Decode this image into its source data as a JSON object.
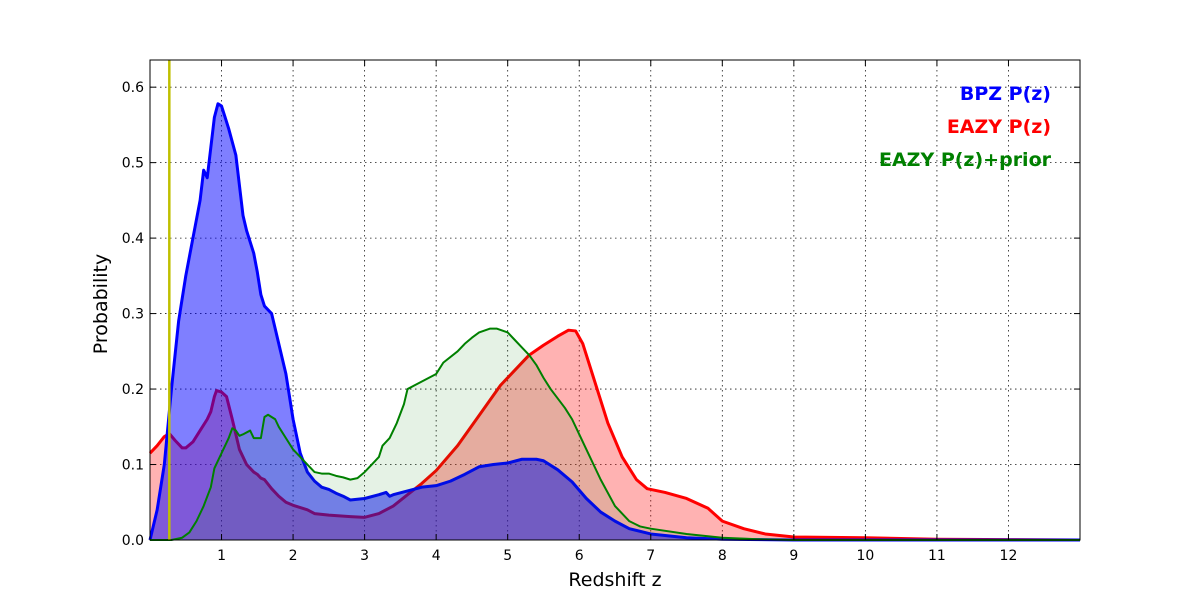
{
  "chart_data": {
    "type": "area",
    "title": "",
    "xlabel": "Redshift z",
    "ylabel": "Probability",
    "xlim": [
      0,
      13
    ],
    "ylim": [
      0,
      0.636
    ],
    "x_ticks": [
      1,
      2,
      3,
      4,
      5,
      6,
      7,
      8,
      9,
      10,
      11,
      12
    ],
    "y_ticks": [
      0.0,
      0.1,
      0.2,
      0.3,
      0.4,
      0.5,
      0.6
    ],
    "grid": true,
    "legend_placement": "top-right",
    "reference_line": {
      "x": 0.27,
      "color": "#bfbf00"
    },
    "series": [
      {
        "name": "EAZY P(z)",
        "color": "#ff0000",
        "fill": "#ff0000",
        "fill_opacity": 0.3,
        "line_width": 3,
        "points": [
          [
            0,
            0.115
          ],
          [
            0.1,
            0.125
          ],
          [
            0.2,
            0.137
          ],
          [
            0.27,
            0.141
          ],
          [
            0.35,
            0.132
          ],
          [
            0.45,
            0.122
          ],
          [
            0.5,
            0.122
          ],
          [
            0.6,
            0.13
          ],
          [
            0.7,
            0.145
          ],
          [
            0.8,
            0.16
          ],
          [
            0.85,
            0.17
          ],
          [
            0.9,
            0.19
          ],
          [
            0.93,
            0.198
          ],
          [
            1.0,
            0.196
          ],
          [
            1.07,
            0.19
          ],
          [
            1.15,
            0.16
          ],
          [
            1.25,
            0.12
          ],
          [
            1.35,
            0.1
          ],
          [
            1.45,
            0.09
          ],
          [
            1.5,
            0.087
          ],
          [
            1.55,
            0.082
          ],
          [
            1.6,
            0.08
          ],
          [
            1.7,
            0.068
          ],
          [
            1.8,
            0.058
          ],
          [
            1.9,
            0.05
          ],
          [
            2.0,
            0.046
          ],
          [
            2.2,
            0.04
          ],
          [
            2.3,
            0.035
          ],
          [
            2.5,
            0.033
          ],
          [
            2.8,
            0.031
          ],
          [
            3.0,
            0.03
          ],
          [
            3.2,
            0.035
          ],
          [
            3.4,
            0.045
          ],
          [
            3.6,
            0.06
          ],
          [
            3.8,
            0.075
          ],
          [
            4.0,
            0.092
          ],
          [
            4.3,
            0.125
          ],
          [
            4.6,
            0.165
          ],
          [
            4.9,
            0.205
          ],
          [
            5.1,
            0.225
          ],
          [
            5.3,
            0.245
          ],
          [
            5.5,
            0.258
          ],
          [
            5.7,
            0.27
          ],
          [
            5.85,
            0.278
          ],
          [
            5.95,
            0.277
          ],
          [
            6.05,
            0.26
          ],
          [
            6.2,
            0.215
          ],
          [
            6.4,
            0.155
          ],
          [
            6.6,
            0.11
          ],
          [
            6.8,
            0.08
          ],
          [
            6.95,
            0.068
          ],
          [
            7.2,
            0.063
          ],
          [
            7.5,
            0.055
          ],
          [
            7.8,
            0.042
          ],
          [
            8.0,
            0.025
          ],
          [
            8.3,
            0.015
          ],
          [
            8.6,
            0.008
          ],
          [
            9.0,
            0.004
          ],
          [
            10.0,
            0.003
          ],
          [
            10.5,
            0.002
          ],
          [
            11.0,
            0.001
          ],
          [
            12.0,
            0.0005
          ],
          [
            13.0,
            0.0
          ]
        ]
      },
      {
        "name": "BPZ P(z)",
        "color": "#0000ff",
        "fill": "#0000ff",
        "fill_opacity": 0.5,
        "line_width": 3,
        "points": [
          [
            0,
            0.0
          ],
          [
            0.1,
            0.04
          ],
          [
            0.2,
            0.1
          ],
          [
            0.3,
            0.2
          ],
          [
            0.4,
            0.29
          ],
          [
            0.5,
            0.35
          ],
          [
            0.6,
            0.4
          ],
          [
            0.7,
            0.45
          ],
          [
            0.75,
            0.49
          ],
          [
            0.8,
            0.48
          ],
          [
            0.85,
            0.52
          ],
          [
            0.9,
            0.56
          ],
          [
            0.95,
            0.578
          ],
          [
            1.0,
            0.575
          ],
          [
            1.05,
            0.56
          ],
          [
            1.1,
            0.545
          ],
          [
            1.2,
            0.51
          ],
          [
            1.25,
            0.47
          ],
          [
            1.3,
            0.43
          ],
          [
            1.35,
            0.41
          ],
          [
            1.45,
            0.38
          ],
          [
            1.5,
            0.355
          ],
          [
            1.55,
            0.325
          ],
          [
            1.6,
            0.31
          ],
          [
            1.7,
            0.3
          ],
          [
            1.8,
            0.26
          ],
          [
            1.9,
            0.22
          ],
          [
            2.0,
            0.16
          ],
          [
            2.1,
            0.115
          ],
          [
            2.2,
            0.09
          ],
          [
            2.3,
            0.078
          ],
          [
            2.4,
            0.07
          ],
          [
            2.5,
            0.067
          ],
          [
            2.6,
            0.062
          ],
          [
            2.7,
            0.058
          ],
          [
            2.8,
            0.053
          ],
          [
            3.0,
            0.055
          ],
          [
            3.2,
            0.06
          ],
          [
            3.3,
            0.063
          ],
          [
            3.35,
            0.058
          ],
          [
            3.4,
            0.06
          ],
          [
            3.6,
            0.065
          ],
          [
            3.8,
            0.07
          ],
          [
            4.0,
            0.072
          ],
          [
            4.2,
            0.078
          ],
          [
            4.4,
            0.087
          ],
          [
            4.6,
            0.097
          ],
          [
            4.8,
            0.1
          ],
          [
            5.0,
            0.102
          ],
          [
            5.2,
            0.107
          ],
          [
            5.4,
            0.107
          ],
          [
            5.5,
            0.105
          ],
          [
            5.7,
            0.093
          ],
          [
            5.9,
            0.077
          ],
          [
            6.1,
            0.055
          ],
          [
            6.3,
            0.037
          ],
          [
            6.5,
            0.025
          ],
          [
            6.7,
            0.015
          ],
          [
            7.0,
            0.008
          ],
          [
            7.5,
            0.003
          ],
          [
            8.0,
            0.001
          ],
          [
            9.0,
            0.0
          ],
          [
            13.0,
            0.0
          ]
        ]
      },
      {
        "name": "EAZY P(z)+prior",
        "color": "#008000",
        "fill": "#008000",
        "fill_opacity": 0.1,
        "line_width": 2,
        "points": [
          [
            0,
            0.0
          ],
          [
            0.3,
            0.0
          ],
          [
            0.45,
            0.003
          ],
          [
            0.55,
            0.01
          ],
          [
            0.65,
            0.025
          ],
          [
            0.75,
            0.045
          ],
          [
            0.85,
            0.07
          ],
          [
            0.9,
            0.095
          ],
          [
            1.0,
            0.115
          ],
          [
            1.1,
            0.135
          ],
          [
            1.15,
            0.148
          ],
          [
            1.2,
            0.145
          ],
          [
            1.25,
            0.138
          ],
          [
            1.3,
            0.14
          ],
          [
            1.4,
            0.145
          ],
          [
            1.45,
            0.135
          ],
          [
            1.55,
            0.135
          ],
          [
            1.6,
            0.163
          ],
          [
            1.65,
            0.166
          ],
          [
            1.75,
            0.16
          ],
          [
            1.8,
            0.15
          ],
          [
            1.9,
            0.135
          ],
          [
            2.0,
            0.12
          ],
          [
            2.1,
            0.11
          ],
          [
            2.2,
            0.1
          ],
          [
            2.3,
            0.09
          ],
          [
            2.4,
            0.088
          ],
          [
            2.5,
            0.088
          ],
          [
            2.6,
            0.085
          ],
          [
            2.7,
            0.083
          ],
          [
            2.8,
            0.08
          ],
          [
            2.9,
            0.082
          ],
          [
            3.0,
            0.09
          ],
          [
            3.1,
            0.1
          ],
          [
            3.2,
            0.11
          ],
          [
            3.25,
            0.125
          ],
          [
            3.35,
            0.135
          ],
          [
            3.45,
            0.155
          ],
          [
            3.55,
            0.18
          ],
          [
            3.6,
            0.2
          ],
          [
            3.7,
            0.205
          ],
          [
            3.8,
            0.21
          ],
          [
            4.0,
            0.22
          ],
          [
            4.1,
            0.235
          ],
          [
            4.3,
            0.25
          ],
          [
            4.4,
            0.26
          ],
          [
            4.5,
            0.268
          ],
          [
            4.6,
            0.275
          ],
          [
            4.75,
            0.28
          ],
          [
            4.85,
            0.28
          ],
          [
            5.0,
            0.275
          ],
          [
            5.1,
            0.265
          ],
          [
            5.2,
            0.255
          ],
          [
            5.3,
            0.245
          ],
          [
            5.4,
            0.232
          ],
          [
            5.5,
            0.215
          ],
          [
            5.6,
            0.2
          ],
          [
            5.8,
            0.175
          ],
          [
            5.9,
            0.16
          ],
          [
            6.0,
            0.14
          ],
          [
            6.1,
            0.12
          ],
          [
            6.3,
            0.08
          ],
          [
            6.5,
            0.045
          ],
          [
            6.7,
            0.025
          ],
          [
            6.85,
            0.018
          ],
          [
            7.0,
            0.015
          ],
          [
            7.5,
            0.008
          ],
          [
            8.0,
            0.003
          ],
          [
            8.5,
            0.001
          ],
          [
            9.0,
            0.0
          ],
          [
            13.0,
            0.0
          ]
        ]
      }
    ],
    "legend": [
      {
        "label": "BPZ P(z)",
        "color": "#0000ff"
      },
      {
        "label": "EAZY P(z)",
        "color": "#ff0000"
      },
      {
        "label": "EAZY P(z)+prior",
        "color": "#008000"
      }
    ]
  }
}
